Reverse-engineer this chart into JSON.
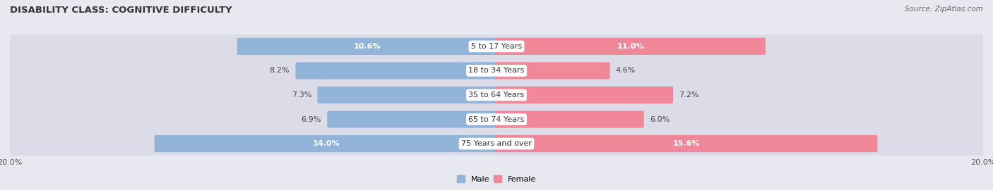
{
  "title": "DISABILITY CLASS: COGNITIVE DIFFICULTY",
  "source": "Source: ZipAtlas.com",
  "categories": [
    "5 to 17 Years",
    "18 to 34 Years",
    "35 to 64 Years",
    "65 to 74 Years",
    "75 Years and over"
  ],
  "male_values": [
    10.6,
    8.2,
    7.3,
    6.9,
    14.0
  ],
  "female_values": [
    11.0,
    4.6,
    7.2,
    6.0,
    15.6
  ],
  "male_color": "#92b4d8",
  "female_color": "#f0889a",
  "xlim_max": 20.0,
  "axis_label_left": "20.0%",
  "axis_label_right": "20.0%",
  "background_color": "#e8e8f0",
  "row_bg_color": "#d8d8e4",
  "title_fontsize": 9.5,
  "source_fontsize": 7.5,
  "bar_label_fontsize": 8.0,
  "category_fontsize": 8.0,
  "axis_tick_fontsize": 8.0,
  "inside_label_threshold": 9.0
}
